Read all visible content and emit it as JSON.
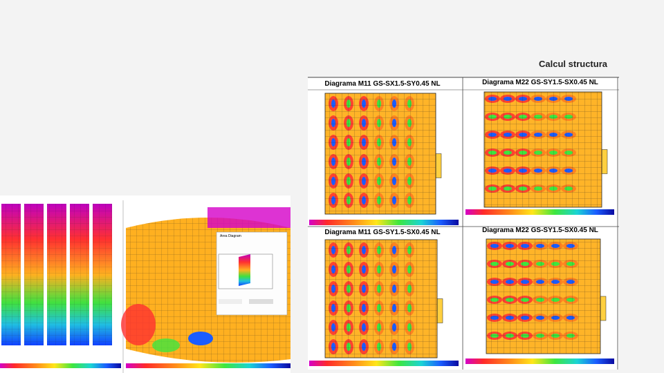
{
  "header": {
    "title": "Calcul structura"
  },
  "panels": [
    {
      "title": "Diagrama M11 GS-SX1.5-SY0.45 NL"
    },
    {
      "title": "Diagrama M22 GS-SY1.5-SX0.45 NL"
    },
    {
      "title": "Diagrama M11 GS-SY1.5-SX0.45 NL"
    },
    {
      "title": "Diagrama M22 GS-SY1.5-SX0.45 NL"
    }
  ],
  "dialog": {
    "title": "Area Diagram"
  }
}
